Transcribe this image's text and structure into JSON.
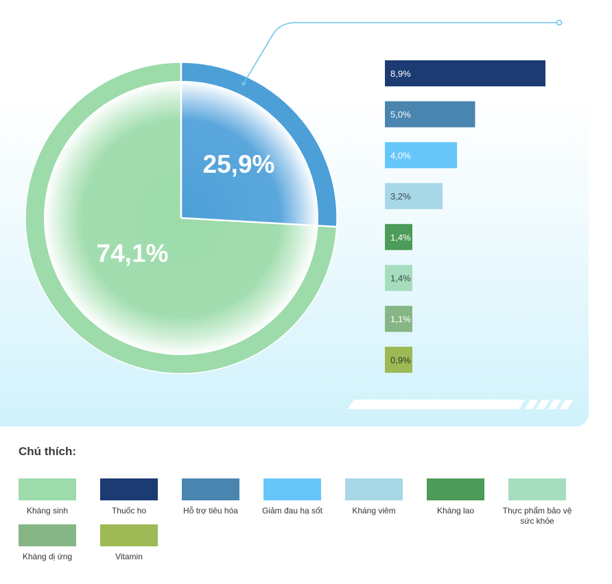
{
  "chart_data": [
    {
      "type": "pie",
      "slices": [
        {
          "label": "25,9%",
          "value": 25.9,
          "color": "#4d9fd8"
        },
        {
          "label": "74,1%",
          "value": 74.1,
          "color": "#9ddbab"
        }
      ]
    },
    {
      "type": "bar",
      "orientation": "horizontal",
      "bars": [
        {
          "label": "8,9%",
          "value": 8.9,
          "category": "Thuốc ho",
          "color": "#1c3b73",
          "text_color": "#ffffff"
        },
        {
          "label": "5,0%",
          "value": 5.0,
          "category": "Hỗ trợ tiêu hóa",
          "color": "#4a85b0",
          "text_color": "#ffffff"
        },
        {
          "label": "4,0%",
          "value": 4.0,
          "category": "Giảm đau hạ sốt",
          "color": "#66c6fa",
          "text_color": "#ffffff"
        },
        {
          "label": "3,2%",
          "value": 3.2,
          "category": "Kháng viêm",
          "color": "#a8d7e7",
          "text_color": "#3a4a55"
        },
        {
          "label": "1,4%",
          "value": 1.4,
          "category": "Kháng lao",
          "color": "#4c9b58",
          "text_color": "#ffffff"
        },
        {
          "label": "1,4%",
          "value": 1.4,
          "category": "Thực phẩm bảo vệ sức khỏe",
          "color": "#a6ddbe",
          "text_color": "#3a4a45"
        },
        {
          "label": "1,1%",
          "value": 1.1,
          "category": "Kháng dị ứng",
          "color": "#86b686",
          "text_color": "#ffffff"
        },
        {
          "label": "0,9%",
          "value": 0.9,
          "category": "Vitamin",
          "color": "#9cb955",
          "text_color": "#2f3a1f"
        }
      ]
    }
  ],
  "legend": {
    "title": "Chú thích:",
    "items": [
      {
        "label": "Kháng sinh",
        "color": "#9ddbab"
      },
      {
        "label": "Thuốc ho",
        "color": "#1c3b73"
      },
      {
        "label": "Hỗ trợ tiêu hóa",
        "color": "#4a85b0"
      },
      {
        "label": "Giảm đau hạ sốt",
        "color": "#66c6fa"
      },
      {
        "label": "Kháng viêm",
        "color": "#a8d7e7"
      },
      {
        "label": "Kháng lao",
        "color": "#4c9b58"
      },
      {
        "label": "Thực phẩm bảo vệ sức khỏe",
        "color": "#a6ddbe"
      },
      {
        "label": "Kháng dị ứng",
        "color": "#86b686"
      },
      {
        "label": "Vitamin",
        "color": "#9cb955"
      }
    ]
  }
}
